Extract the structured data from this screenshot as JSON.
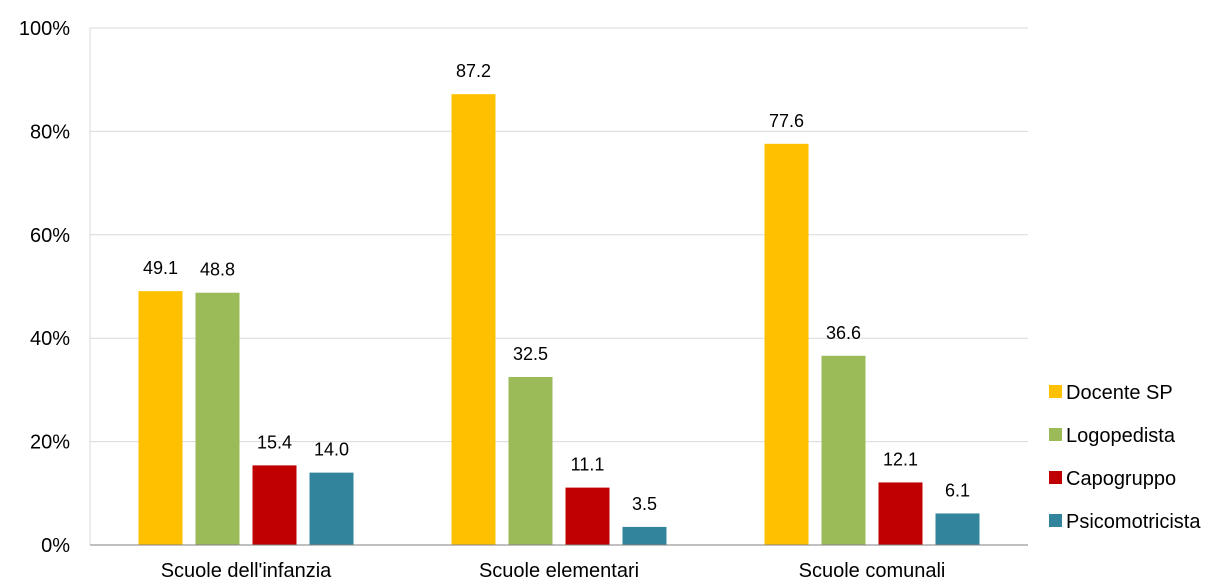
{
  "chart_data": {
    "type": "bar",
    "categories": [
      "Scuole dell'infanzia",
      "Scuole elementari",
      "Scuole comunali"
    ],
    "series": [
      {
        "name": "Docente SP",
        "color": "#FFC000",
        "values": [
          49.1,
          87.2,
          77.6
        ]
      },
      {
        "name": "Logopedista",
        "color": "#9BBB59",
        "values": [
          48.8,
          32.5,
          36.6
        ]
      },
      {
        "name": "Capogruppo",
        "color": "#C00000",
        "values": [
          15.4,
          11.1,
          12.1
        ]
      },
      {
        "name": "Psicomotricista",
        "color": "#31849B",
        "values": [
          14.0,
          3.5,
          6.1
        ]
      }
    ],
    "data_labels": [
      [
        "49.1",
        "87.2",
        "77.6"
      ],
      [
        "48.8",
        "32.5",
        "36.6"
      ],
      [
        "15.4",
        "11.1",
        "12.1"
      ],
      [
        "14.0",
        "3.5",
        "6.1"
      ]
    ],
    "yticks": [
      {
        "value": 0,
        "label": "0%"
      },
      {
        "value": 20,
        "label": "20%"
      },
      {
        "value": 40,
        "label": "40%"
      },
      {
        "value": 60,
        "label": "60%"
      },
      {
        "value": 80,
        "label": "80%"
      },
      {
        "value": 100,
        "label": "100%"
      }
    ],
    "ylim": [
      0,
      100
    ],
    "title": "",
    "xlabel": "",
    "ylabel": "",
    "grid": true,
    "legend_position": "right",
    "gridline_color": "#D9D9D9",
    "axis_color": "#808080"
  }
}
